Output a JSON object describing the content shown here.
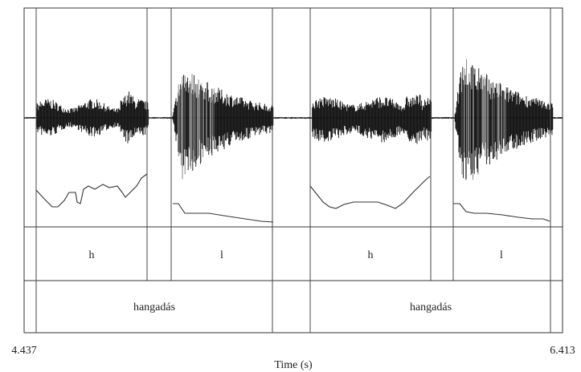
{
  "chart_data": {
    "type": "waveform",
    "time_axis": {
      "start": "4.437",
      "end": "6.413",
      "label": "Time (s)"
    },
    "tier1_labels": [
      "h",
      "l",
      "h",
      "l"
    ],
    "tier2_labels": [
      "hangadás",
      "hangadás"
    ]
  }
}
